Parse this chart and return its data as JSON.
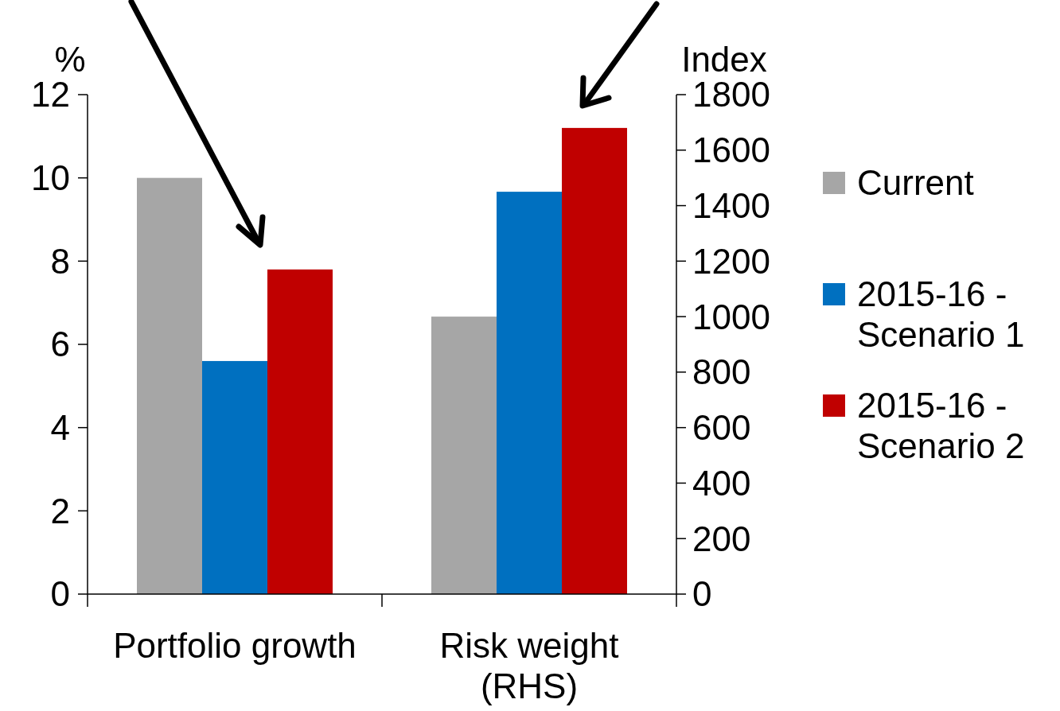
{
  "chart_data": {
    "type": "bar",
    "ylabel": "%",
    "y2label": "Index",
    "categories": [
      "Portfolio growth",
      "Risk weight (RHS)"
    ],
    "series": [
      {
        "name": "Current",
        "color": "#a6a6a6",
        "values": [
          10,
          null
        ]
      },
      {
        "name": "2015-16 - Scenario 1",
        "color": "#0070c0",
        "values": [
          5.6,
          null
        ]
      },
      {
        "name": "2015-16 - Scenario 2",
        "color": "#c00000",
        "values": [
          7.8,
          null
        ]
      },
      {
        "color": "#a6a6a6",
        "values": [
          null,
          1000
        ],
        "axis": "y2"
      },
      {
        "color": "#0070c0",
        "values": [
          null,
          1450
        ],
        "axis": "y2"
      },
      {
        "color": "#c00000",
        "values": [
          null,
          1680
        ],
        "axis": "y2"
      }
    ],
    "ylim": [
      0,
      12
    ],
    "yticks": [
      0,
      2,
      4,
      6,
      8,
      10,
      12
    ],
    "y2lim": [
      0,
      1800
    ],
    "y2ticks": [
      0,
      200,
      400,
      600,
      800,
      1000,
      1200,
      1400,
      1600,
      1800
    ],
    "legend": "right"
  }
}
